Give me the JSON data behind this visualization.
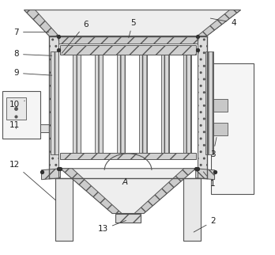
{
  "fig_width": 3.48,
  "fig_height": 3.22,
  "dpi": 100,
  "bg_color": "#ffffff",
  "ec": "#555555",
  "fc_light": "#f0f0f0",
  "fc_wall": "#d8d8d8",
  "fc_hatch": "#e8e8e8"
}
